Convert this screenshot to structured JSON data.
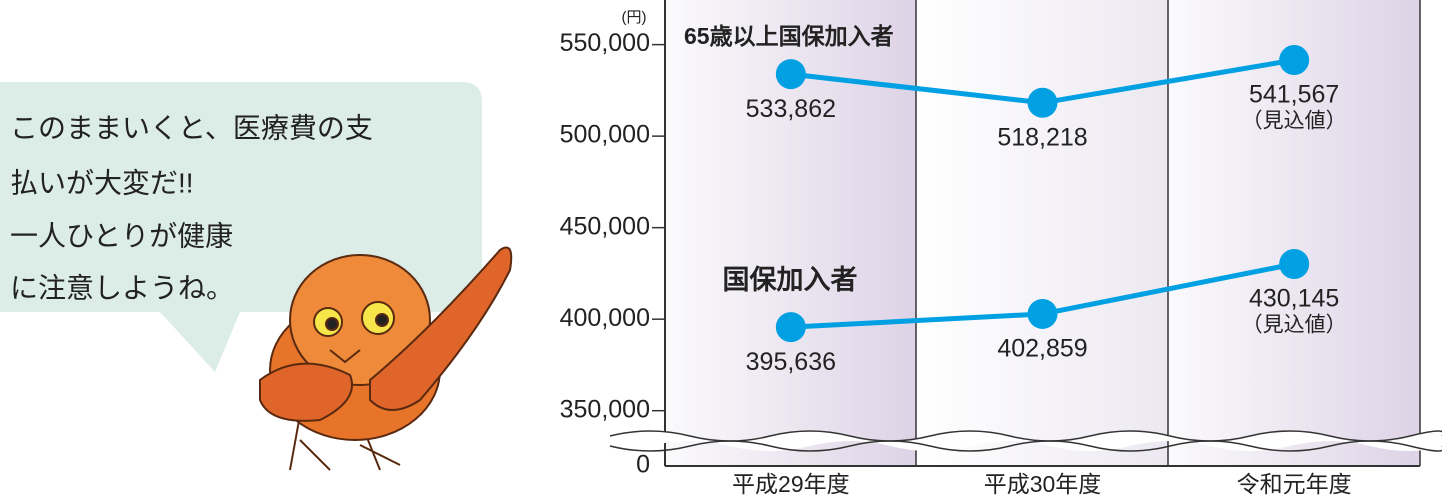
{
  "speech_bubble": {
    "lines": [
      "このままいくと、医療費の支",
      "払いが大変だ!!",
      "一人ひとりが健康",
      "に注意しようね。"
    ]
  },
  "chart_data": {
    "type": "line",
    "y_unit": "(円)",
    "categories": [
      "平成29年度",
      "平成30年度",
      "令和元年度"
    ],
    "series": [
      {
        "name": "65歳以上国保加入者",
        "color": "#00a0e3",
        "values": [
          533862,
          518218,
          541567
        ],
        "value_labels": [
          "533,862",
          "518,218",
          "541,567"
        ],
        "value_notes": [
          null,
          null,
          "（見込値）"
        ]
      },
      {
        "name": "国保加入者",
        "color": "#00a0e3",
        "values": [
          395636,
          402859,
          430145
        ],
        "value_labels": [
          "395,636",
          "402,859",
          "430,145"
        ],
        "value_notes": [
          null,
          null,
          "（見込値）"
        ]
      }
    ],
    "ylim": [
      340000,
      570000
    ],
    "yticks": [
      0,
      {
        "value": 350000,
        "label": "350,000"
      },
      {
        "value": 400000,
        "label": "400,000"
      },
      {
        "value": 450000,
        "label": "450,000"
      },
      {
        "value": 500000,
        "label": "500,000"
      },
      {
        "value": 550000,
        "label": "550,000"
      }
    ],
    "axis_break": true
  }
}
